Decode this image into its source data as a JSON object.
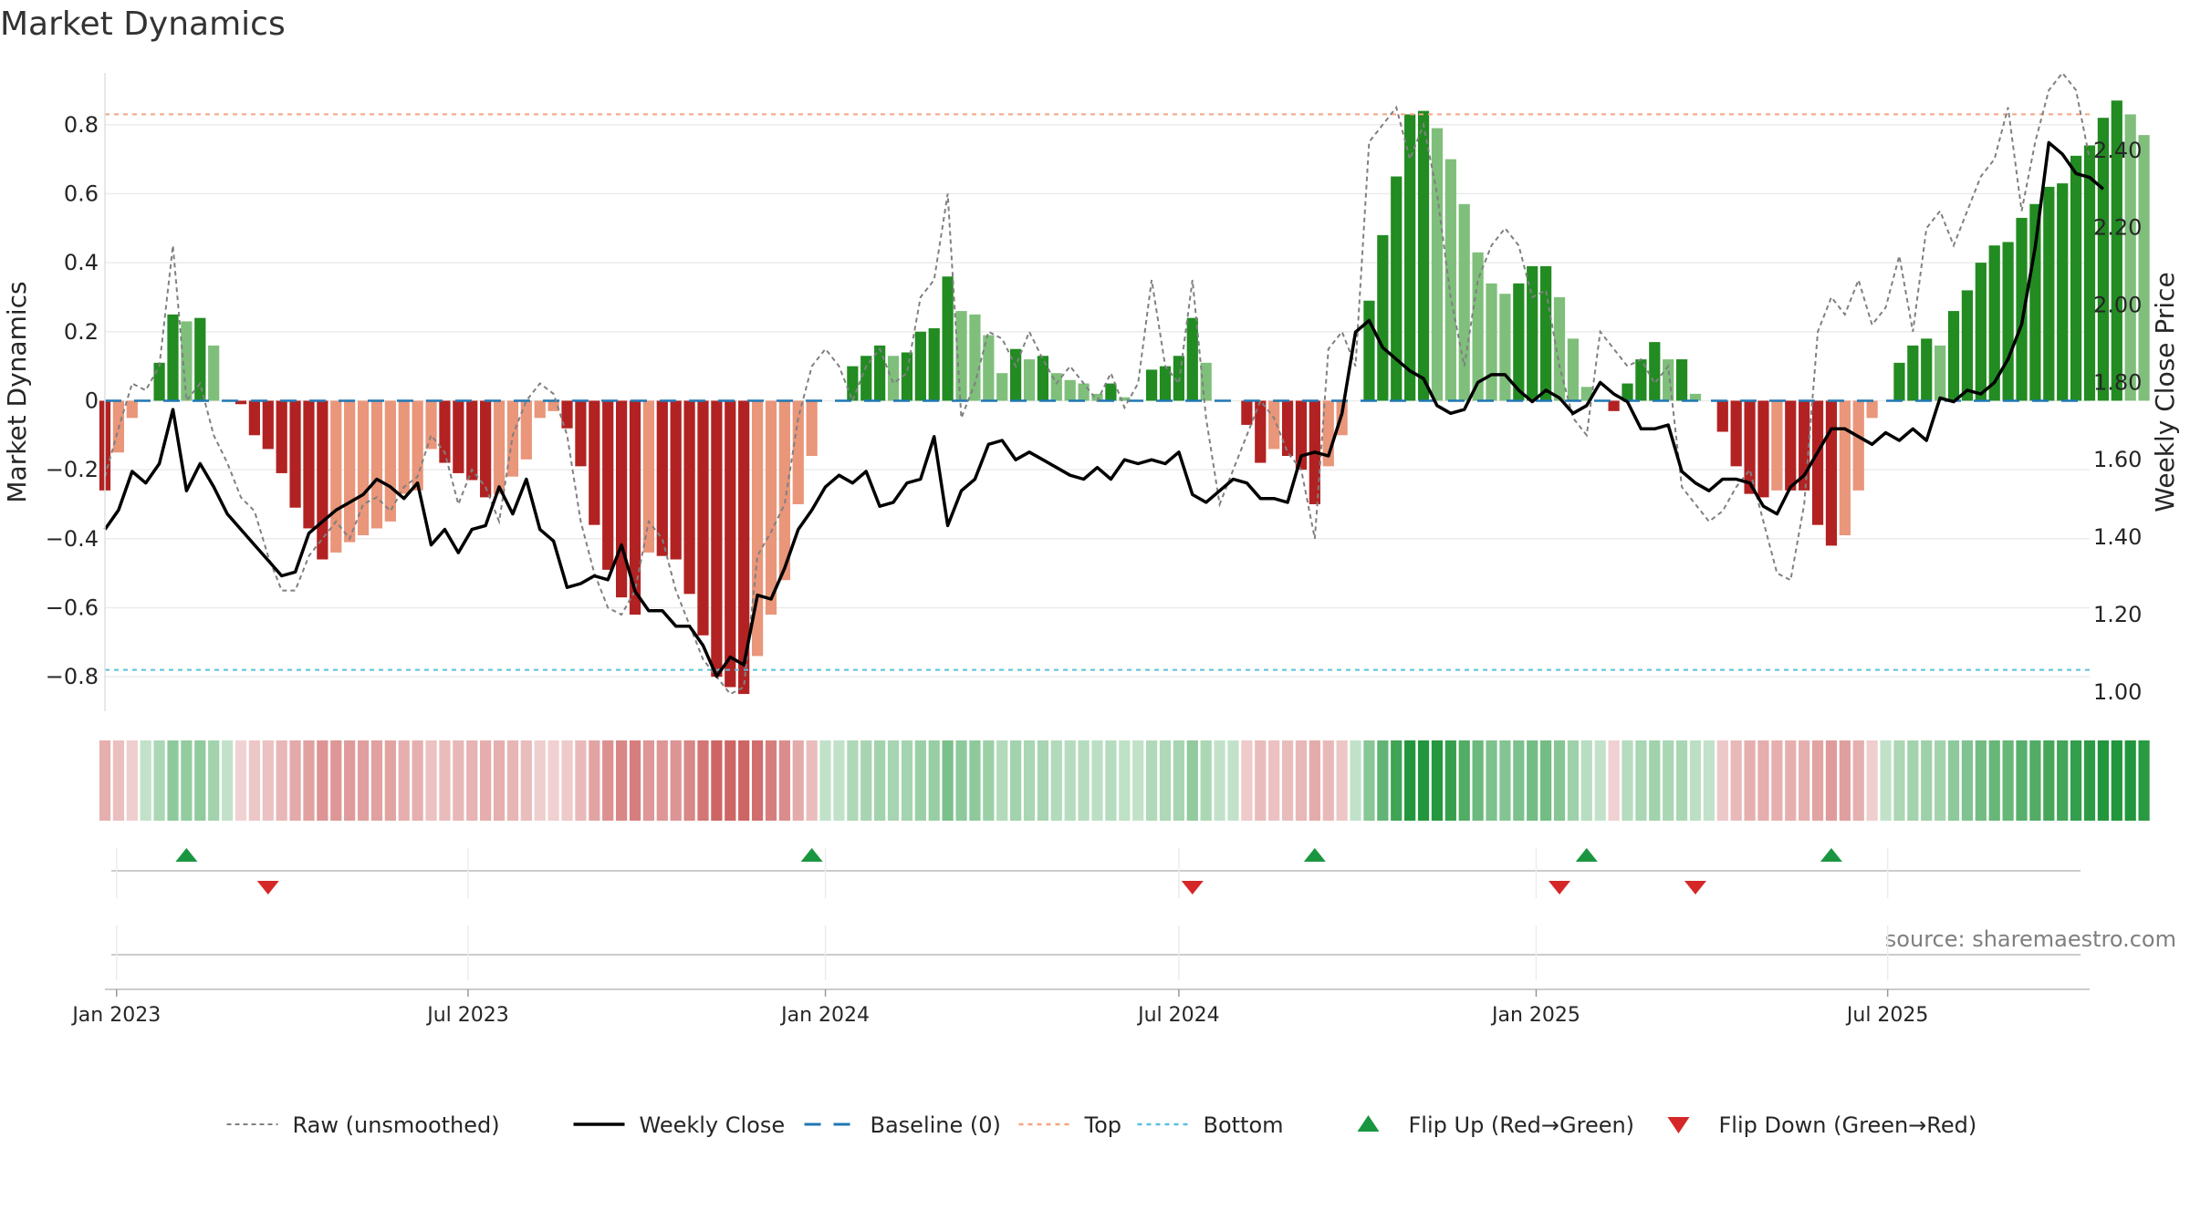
{
  "chart_data": {
    "type": "bar",
    "title": "Market Dynamics",
    "ylabel_left": "Market Dynamics",
    "ylabel_right": "Weekly Close Price",
    "source": "source: sharemaestro.com",
    "ylim_left": [
      -0.9,
      0.95
    ],
    "ylim_right": [
      0.95,
      2.6
    ],
    "yticks_left": [
      "0.8",
      "0.6",
      "0.4",
      "0.2",
      "0",
      "−0.2",
      "−0.4",
      "−0.6",
      "−0.8"
    ],
    "yticks_left_values": [
      0.8,
      0.6,
      0.4,
      0.2,
      0,
      -0.2,
      -0.4,
      -0.6,
      -0.8
    ],
    "yticks_right": [
      "2.40",
      "2.20",
      "2.00",
      "1.80",
      "1.60",
      "1.40",
      "1.20",
      "1.00"
    ],
    "yticks_right_values": [
      2.4,
      2.2,
      2.0,
      1.8,
      1.6,
      1.4,
      1.2,
      1.0
    ],
    "xlim_dates": [
      "2022-12-26",
      "2025-10-13"
    ],
    "xticks": [
      {
        "label": "Jan 2023",
        "date": "2023-01-01"
      },
      {
        "label": "Jul 2023",
        "date": "2023-07-01"
      },
      {
        "label": "Jan 2024",
        "date": "2024-01-01"
      },
      {
        "label": "Jul 2024",
        "date": "2024-07-01"
      },
      {
        "label": "Jan 2025",
        "date": "2025-01-01"
      },
      {
        "label": "Jul 2025",
        "date": "2025-07-01"
      }
    ],
    "top_level": 0.83,
    "bottom_level": -0.78,
    "baseline": 0,
    "grid": true,
    "legend_position": "bottom",
    "colors": {
      "strong_green": "#228b22",
      "light_green": "#7fbf7b",
      "strong_red": "#b22222",
      "light_red": "#e9967a",
      "raw": "#808080",
      "close": "#000000",
      "baseline": "#1f77b4",
      "top": "#f4a582",
      "bottom": "#5bc0de",
      "flip_up": "#1a9641",
      "flip_down": "#d62728"
    },
    "first_week": "2022-12-26",
    "weekly_values": [
      -0.26,
      -0.15,
      -0.05,
      0,
      0.11,
      0.25,
      0.23,
      0.24,
      0.16,
      0,
      -0.01,
      -0.1,
      -0.14,
      -0.21,
      -0.31,
      -0.37,
      -0.46,
      -0.44,
      -0.41,
      -0.39,
      -0.37,
      -0.35,
      -0.27,
      -0.26,
      -0.14,
      -0.18,
      -0.21,
      -0.23,
      -0.28,
      -0.27,
      -0.22,
      -0.17,
      -0.05,
      -0.03,
      -0.08,
      -0.19,
      -0.36,
      -0.49,
      -0.57,
      -0.62,
      -0.44,
      -0.45,
      -0.46,
      -0.56,
      -0.68,
      -0.8,
      -0.83,
      -0.85,
      -0.74,
      -0.62,
      -0.52,
      -0.3,
      -0.16,
      0,
      0,
      0.1,
      0.13,
      0.16,
      0.13,
      0.14,
      0.2,
      0.21,
      0.36,
      0.26,
      0.25,
      0.19,
      0.08,
      0.15,
      0.12,
      0.13,
      0.08,
      0.06,
      0.05,
      0.02,
      0.05,
      0.01,
      0.0,
      0.09,
      0.1,
      0.13,
      0.24,
      0.11,
      0,
      0,
      -0.07,
      -0.18,
      -0.14,
      -0.16,
      -0.2,
      -0.3,
      -0.19,
      -0.1,
      0,
      0.29,
      0.48,
      0.65,
      0.83,
      0.84,
      0.79,
      0.7,
      0.57,
      0.43,
      0.34,
      0.31,
      0.34,
      0.39,
      0.39,
      0.3,
      0.18,
      0.04,
      0,
      -0.03,
      0.05,
      0.12,
      0.17,
      0.12,
      0.12,
      0.02,
      0,
      -0.09,
      -0.19,
      -0.27,
      -0.28,
      -0.26,
      -0.26,
      -0.26,
      -0.36,
      -0.42,
      -0.39,
      -0.26,
      -0.05,
      0,
      0.11,
      0.16,
      0.18,
      0.16,
      0.26,
      0.32,
      0.4,
      0.45,
      0.46,
      0.53,
      0.57,
      0.62,
      0.63,
      0.71,
      0.74,
      0.82,
      0.87,
      0.83,
      0.77
    ],
    "weekly_close": [
      1.42,
      1.47,
      1.57,
      1.54,
      1.59,
      1.73,
      1.52,
      1.59,
      1.53,
      1.46,
      1.42,
      1.38,
      1.34,
      1.3,
      1.31,
      1.41,
      1.44,
      1.47,
      1.49,
      1.51,
      1.55,
      1.53,
      1.5,
      1.54,
      1.38,
      1.42,
      1.36,
      1.42,
      1.43,
      1.53,
      1.46,
      1.55,
      1.42,
      1.39,
      1.27,
      1.28,
      1.3,
      1.29,
      1.38,
      1.26,
      1.21,
      1.21,
      1.17,
      1.17,
      1.12,
      1.04,
      1.09,
      1.07,
      1.25,
      1.24,
      1.32,
      1.42,
      1.47,
      1.53,
      1.56,
      1.54,
      1.57,
      1.48,
      1.49,
      1.54,
      1.55,
      1.66,
      1.43,
      1.52,
      1.55,
      1.64,
      1.65,
      1.6,
      1.62,
      1.6,
      1.58,
      1.56,
      1.55,
      1.58,
      1.55,
      1.6,
      1.59,
      1.6,
      1.59,
      1.62,
      1.51,
      1.49,
      1.52,
      1.55,
      1.54,
      1.5,
      1.5,
      1.49,
      1.61,
      1.62,
      1.61,
      1.72,
      1.93,
      1.96,
      1.89,
      1.86,
      1.83,
      1.81,
      1.74,
      1.72,
      1.73,
      1.8,
      1.82,
      1.82,
      1.78,
      1.75,
      1.78,
      1.76,
      1.72,
      1.74,
      1.8,
      1.77,
      1.75,
      1.68,
      1.68,
      1.69,
      1.57,
      1.54,
      1.52,
      1.55,
      1.55,
      1.54,
      1.48,
      1.46,
      1.53,
      1.56,
      1.62,
      1.68,
      1.68,
      1.66,
      1.64,
      1.67,
      1.65,
      1.68,
      1.65,
      1.76,
      1.75,
      1.78,
      1.77,
      1.8,
      1.86,
      1.95,
      2.15,
      2.42,
      2.39,
      2.34,
      2.33,
      2.3
    ],
    "weekly_raw": [
      -0.22,
      -0.08,
      0.05,
      0.03,
      0.1,
      0.45,
      0.0,
      0.05,
      -0.1,
      -0.18,
      -0.28,
      -0.32,
      -0.45,
      -0.55,
      -0.55,
      -0.45,
      -0.4,
      -0.35,
      -0.4,
      -0.3,
      -0.28,
      -0.32,
      -0.25,
      -0.22,
      -0.1,
      -0.15,
      -0.3,
      -0.2,
      -0.25,
      -0.35,
      -0.1,
      0.0,
      0.05,
      0.02,
      -0.1,
      -0.35,
      -0.5,
      -0.6,
      -0.62,
      -0.55,
      -0.35,
      -0.4,
      -0.55,
      -0.65,
      -0.75,
      -0.8,
      -0.85,
      -0.83,
      -0.45,
      -0.38,
      -0.3,
      -0.05,
      0.1,
      0.15,
      0.1,
      0.0,
      0.1,
      0.15,
      0.05,
      0.08,
      0.3,
      0.35,
      0.6,
      -0.05,
      0.05,
      0.2,
      0.18,
      0.1,
      0.2,
      0.12,
      0.05,
      0.1,
      0.05,
      0.0,
      0.08,
      -0.02,
      0.05,
      0.35,
      0.1,
      0.05,
      0.35,
      -0.05,
      -0.3,
      -0.2,
      -0.1,
      0.0,
      -0.05,
      -0.15,
      -0.2,
      -0.4,
      0.15,
      0.2,
      0.1,
      0.75,
      0.8,
      0.85,
      0.7,
      0.8,
      0.6,
      0.3,
      0.1,
      0.35,
      0.45,
      0.5,
      0.45,
      0.3,
      0.32,
      0.1,
      -0.05,
      -0.1,
      0.2,
      0.15,
      0.1,
      0.12,
      0.05,
      0.1,
      -0.25,
      -0.3,
      -0.35,
      -0.32,
      -0.25,
      -0.2,
      -0.35,
      -0.5,
      -0.52,
      -0.3,
      0.2,
      0.3,
      0.25,
      0.35,
      0.22,
      0.27,
      0.42,
      0.2,
      0.5,
      0.55,
      0.45,
      0.55,
      0.65,
      0.7,
      0.85,
      0.55,
      0.75,
      0.9,
      0.95,
      0.9,
      0.7
    ],
    "flip_up_dates": [
      "2023-02-06",
      "2023-12-25",
      "2024-09-09",
      "2025-01-27",
      "2025-06-02"
    ],
    "flip_down_dates": [
      "2023-03-20",
      "2024-07-08",
      "2025-01-13",
      "2025-03-24"
    ],
    "legend": [
      {
        "label": "Raw (unsmoothed)",
        "style": "raw"
      },
      {
        "label": "Weekly Close",
        "style": "close"
      },
      {
        "label": "Baseline (0)",
        "style": "baseline"
      },
      {
        "label": "Top",
        "style": "top"
      },
      {
        "label": "Bottom",
        "style": "bottom"
      },
      {
        "label": "Flip Up (Red→Green)",
        "style": "flip_up"
      },
      {
        "label": "Flip Down (Green→Red)",
        "style": "flip_down"
      }
    ]
  }
}
